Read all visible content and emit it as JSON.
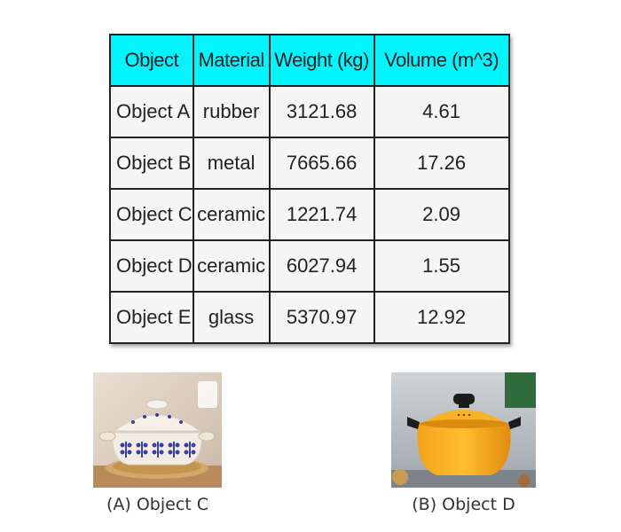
{
  "table": {
    "headers": [
      "Object",
      "Material",
      "Weight (kg)",
      "Volume (m^3)"
    ],
    "rows": [
      [
        "Object A",
        "rubber",
        "3121.68",
        "4.61"
      ],
      [
        "Object B",
        "metal",
        "7665.66",
        "17.26"
      ],
      [
        "Object C",
        "ceramic",
        "1221.74",
        "2.09"
      ],
      [
        "Object D",
        "ceramic",
        "6027.94",
        "1.55"
      ],
      [
        "Object E",
        "glass",
        "5370.97",
        "12.92"
      ]
    ]
  },
  "images": [
    {
      "caption": "(A) Object C",
      "icon": "ceramic-pot-photo"
    },
    {
      "caption": "(B) Object D",
      "icon": "orange-pot-photo"
    }
  ],
  "colors": {
    "header_bg": "#00f5ff",
    "cell_bg": "#f5f5f5",
    "border": "#222222"
  }
}
